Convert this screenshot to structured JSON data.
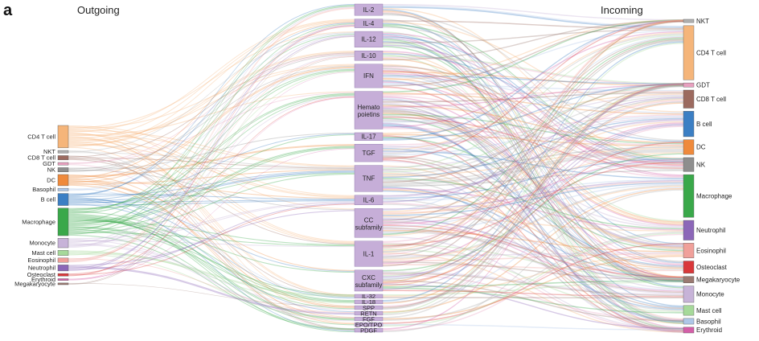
{
  "panel_letter": "a",
  "headings": {
    "left": "Outgoing",
    "right": "Incoming"
  },
  "colors": {
    "CD4 T cell": "#f5b57a",
    "NKT": "#b0b0b0",
    "CD8 T cell": "#9c6a5f",
    "GDT": "#e8a0bf",
    "NK": "#8e8e8e",
    "DC": "#ef8a3c",
    "Basophil": "#aec7e8",
    "B cell": "#3c7fc4",
    "Macrophage": "#3aa84a",
    "Monocyte": "#c7b3d8",
    "Mast cell": "#a6d99a",
    "Eosinophil": "#f0a09a",
    "Neutrophil": "#8c67b8",
    "Osteoclast": "#d9383a",
    "Erythroid": "#d45fa8",
    "Megakaryocyte": "#9b7a72",
    "cytokine_box": "#c6aed8"
  },
  "sources": [
    {
      "name": "CD4 T cell",
      "size": 26
    },
    {
      "name": "NKT",
      "size": 3
    },
    {
      "name": "CD8 T cell",
      "size": 5
    },
    {
      "name": "GDT",
      "size": 3
    },
    {
      "name": "NK",
      "size": 5
    },
    {
      "name": "DC",
      "size": 13
    },
    {
      "name": "Basophil",
      "size": 3
    },
    {
      "name": "B cell",
      "size": 14
    },
    {
      "name": "Macrophage",
      "size": 32
    },
    {
      "name": "Monocyte",
      "size": 11
    },
    {
      "name": "Mast cell",
      "size": 6
    },
    {
      "name": "Eosinophil",
      "size": 5
    },
    {
      "name": "Neutrophil",
      "size": 7
    },
    {
      "name": "Osteoclast",
      "size": 3
    },
    {
      "name": "Erythroid",
      "size": 2
    },
    {
      "name": "Megakaryocyte",
      "size": 2
    }
  ],
  "cytokines": [
    {
      "name": "IL-2",
      "size": 13
    },
    {
      "name": "IL-4",
      "size": 10
    },
    {
      "name": "IL-12",
      "size": 18
    },
    {
      "name": "IL-10",
      "size": 11
    },
    {
      "name": "IFN",
      "size": 27
    },
    {
      "name": "Hemato poietins",
      "size": 43
    },
    {
      "name": "IL-17",
      "size": 9
    },
    {
      "name": "TGF",
      "size": 20
    },
    {
      "name": "TNF",
      "size": 30
    },
    {
      "name": "IL-6",
      "size": 11
    },
    {
      "name": "CC subfamily",
      "size": 33
    },
    {
      "name": "IL-1",
      "size": 29
    },
    {
      "name": "CXC subfamily",
      "size": 24
    },
    {
      "name": "IL-32",
      "size": 3
    },
    {
      "name": "IL-18",
      "size": 3
    },
    {
      "name": "SPP",
      "size": 3
    },
    {
      "name": "RETN",
      "size": 3
    },
    {
      "name": "FGF",
      "size": 3
    },
    {
      "name": "EPO/TPO",
      "size": 3
    },
    {
      "name": "PDGF",
      "size": 3
    }
  ],
  "targets": [
    {
      "name": "NKT",
      "size": 4
    },
    {
      "name": "CD4 T cell",
      "size": 66
    },
    {
      "name": "GDT",
      "size": 5
    },
    {
      "name": "CD8 T cell",
      "size": 22
    },
    {
      "name": "B cell",
      "size": 31
    },
    {
      "name": "DC",
      "size": 18
    },
    {
      "name": "NK",
      "size": 17
    },
    {
      "name": "Macrophage",
      "size": 52
    },
    {
      "name": "Neutrophil",
      "size": 24
    },
    {
      "name": "Eosinophil",
      "size": 18
    },
    {
      "name": "Osteoclast",
      "size": 15
    },
    {
      "name": "Megakaryocyte",
      "size": 8
    },
    {
      "name": "Monocyte",
      "size": 20
    },
    {
      "name": "Mast cell",
      "size": 12
    },
    {
      "name": "Basophil",
      "size": 7
    },
    {
      "name": "Erythroid",
      "size": 7
    }
  ]
}
